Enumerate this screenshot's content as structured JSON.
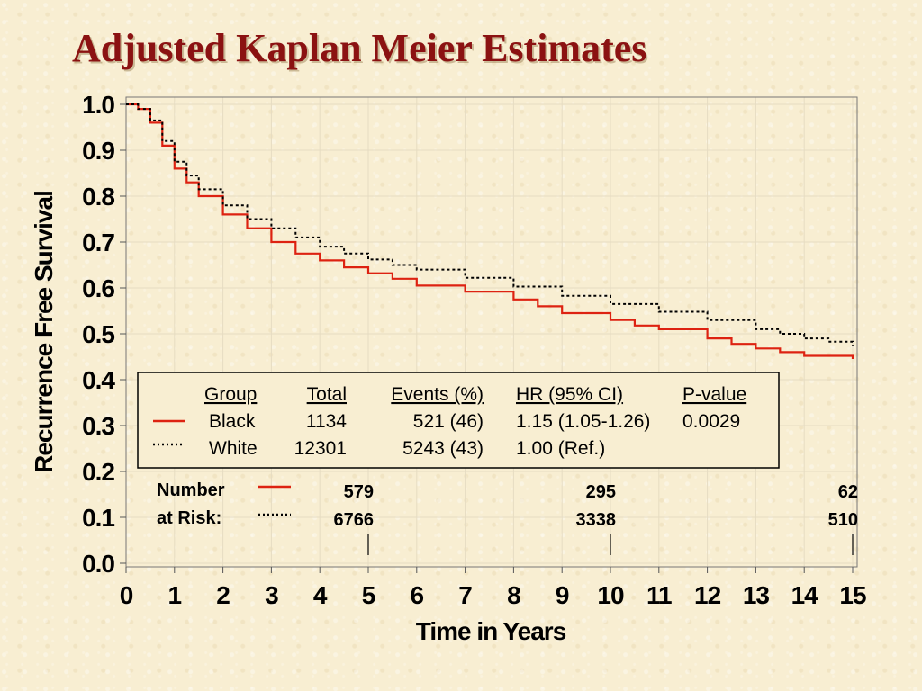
{
  "slide_title": "Adjusted Kaplan Meier Estimates",
  "colors": {
    "title": "#8b1212",
    "black_group": "#dd2211",
    "white_group": "#000000",
    "background": "#f8eed2"
  },
  "chart_data": {
    "type": "line",
    "xlabel": "Time in Years",
    "ylabel": "Recurrence Free Survival",
    "xlim": [
      0,
      15
    ],
    "ylim": [
      0,
      1
    ],
    "x_ticks": [
      "0",
      "1",
      "2",
      "3",
      "4",
      "5",
      "6",
      "7",
      "8",
      "9",
      "10",
      "11",
      "12",
      "13",
      "14",
      "15"
    ],
    "y_ticks": [
      "0.0",
      "0.1",
      "0.2",
      "0.3",
      "0.4",
      "0.5",
      "0.6",
      "0.7",
      "0.8",
      "0.9",
      "1.0"
    ],
    "grid": true,
    "series": [
      {
        "name": "Black",
        "style": "solid",
        "color": "#dd2211",
        "x": [
          0,
          0.25,
          0.5,
          0.75,
          1.0,
          1.25,
          1.5,
          2.0,
          2.5,
          3.0,
          3.5,
          4.0,
          4.5,
          5.0,
          5.5,
          6.0,
          7.0,
          8.0,
          8.5,
          9.0,
          10.0,
          10.5,
          11.0,
          12.0,
          12.5,
          13.0,
          13.5,
          14.0,
          15.0
        ],
        "y": [
          1.0,
          0.99,
          0.96,
          0.91,
          0.86,
          0.83,
          0.8,
          0.76,
          0.73,
          0.7,
          0.675,
          0.66,
          0.645,
          0.632,
          0.62,
          0.605,
          0.592,
          0.575,
          0.56,
          0.545,
          0.53,
          0.518,
          0.51,
          0.49,
          0.478,
          0.468,
          0.46,
          0.452,
          0.445
        ]
      },
      {
        "name": "White",
        "style": "dotted",
        "color": "#000000",
        "x": [
          0,
          0.25,
          0.5,
          0.75,
          1.0,
          1.25,
          1.5,
          2.0,
          2.5,
          3.0,
          3.5,
          4.0,
          4.5,
          5.0,
          5.5,
          6.0,
          7.0,
          8.0,
          9.0,
          10.0,
          11.0,
          12.0,
          13.0,
          13.5,
          14.0,
          14.5,
          15.0
        ],
        "y": [
          1.0,
          0.99,
          0.965,
          0.92,
          0.875,
          0.845,
          0.815,
          0.78,
          0.75,
          0.73,
          0.71,
          0.69,
          0.675,
          0.662,
          0.65,
          0.64,
          0.622,
          0.603,
          0.583,
          0.565,
          0.548,
          0.53,
          0.51,
          0.5,
          0.49,
          0.483,
          0.475
        ]
      }
    ],
    "legend": {
      "position": "lower-center",
      "headers": [
        "Group",
        "Total",
        "Events (%)",
        "HR (95% CI)",
        "P-value"
      ],
      "rows": [
        {
          "group": "Black",
          "total": "1134",
          "events": "521 (46)",
          "hr": "1.15 (1.05-1.26)",
          "p": "0.0029"
        },
        {
          "group": "White",
          "total": "12301",
          "events": "5243 (43)",
          "hr": "1.00 (Ref.)",
          "p": ""
        }
      ]
    },
    "number_at_risk": {
      "label_line1": "Number",
      "label_line2": "at Risk:",
      "times": [
        5,
        10,
        15
      ],
      "black": [
        "579",
        "295",
        "62"
      ],
      "white": [
        "6766",
        "3338",
        "510"
      ]
    }
  }
}
